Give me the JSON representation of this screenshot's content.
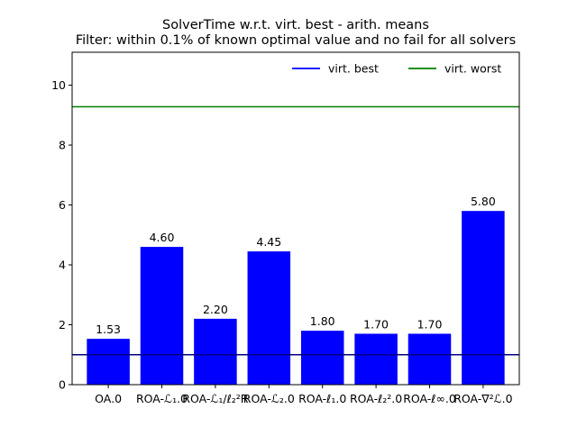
{
  "chart_data": {
    "type": "bar",
    "title_line1": "SolverTime w.r.t. virt. best - arith. means",
    "title_line2": "Filter: within 0.1% of known optimal value and no fail for all solvers",
    "categories": [
      "OA.0",
      "ROA-ℒ₁.0",
      "ROA-ℒ₁/ℓ₂²R",
      "ROA-ℒ₂.0",
      "ROA-ℓ₁.0",
      "ROA-ℓ₂².0",
      "ROA-ℓ∞.0",
      "ROA-∇²ℒ.0"
    ],
    "values": [
      1.53,
      4.6,
      2.2,
      4.45,
      1.8,
      1.7,
      1.7,
      5.8
    ],
    "value_labels": [
      "1.53",
      "4.60",
      "2.20",
      "4.45",
      "1.80",
      "1.70",
      "1.70",
      "5.80"
    ],
    "bar_color": "#0000ff",
    "ylim": [
      0,
      11.1
    ],
    "yticks": [
      0,
      2,
      4,
      6,
      8,
      10
    ],
    "reference_lines": [
      {
        "name": "virt. best",
        "value": 1.0,
        "color": "#00007f"
      },
      {
        "name": "virt. worst",
        "value": 9.28,
        "color": "#007f00"
      }
    ],
    "legend": {
      "position": "top-right",
      "entries": [
        {
          "label": "virt. best",
          "color": "#0000ff"
        },
        {
          "label": "virt. worst",
          "color": "#008000"
        }
      ]
    }
  }
}
